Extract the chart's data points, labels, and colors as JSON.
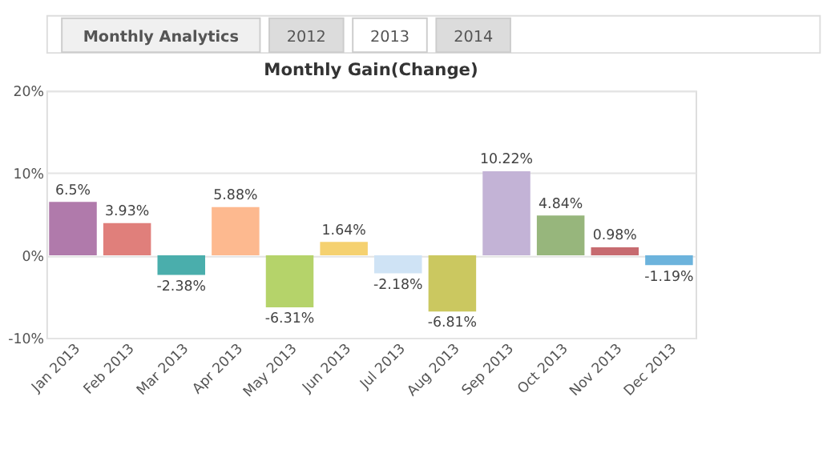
{
  "chart_data": {
    "type": "bar",
    "title": "Monthly Gain(Change)",
    "annotations": [
      "Monthly Analytics",
      "2012",
      "2013",
      "2014"
    ],
    "categories": [
      "Jan 2013",
      "Feb 2013",
      "Mar 2013",
      "Apr 2013",
      "May 2013",
      "Jun 2013",
      "Jul 2013",
      "Aug 2013",
      "Sep 2013",
      "Oct 2013",
      "Nov 2013",
      "Dec 2013"
    ],
    "values": [
      6.5,
      3.93,
      -2.38,
      5.88,
      -6.31,
      1.64,
      -2.18,
      -6.81,
      10.22,
      4.84,
      0.98,
      -1.19
    ],
    "value_labels": [
      "6.5%",
      "3.93%",
      "-2.38%",
      "5.88%",
      "-6.31%",
      "1.64%",
      "-2.18%",
      "-6.81%",
      "10.22%",
      "4.84%",
      "0.98%",
      "-1.19%"
    ],
    "colors": [
      "#b07aab",
      "#e07f7b",
      "#4aaeac",
      "#fdb98f",
      "#b5d36a",
      "#f5d170",
      "#cfe3f5",
      "#cbc860",
      "#c3b3d6",
      "#97b67c",
      "#c76b70",
      "#6cb3dc"
    ],
    "ylim": [
      -10,
      20
    ],
    "yticks": [
      {
        "value": -10,
        "label": "-10%"
      },
      {
        "value": 0,
        "label": "0%"
      },
      {
        "value": 10,
        "label": "10%"
      },
      {
        "value": 20,
        "label": "20%"
      }
    ],
    "grid": "y"
  }
}
